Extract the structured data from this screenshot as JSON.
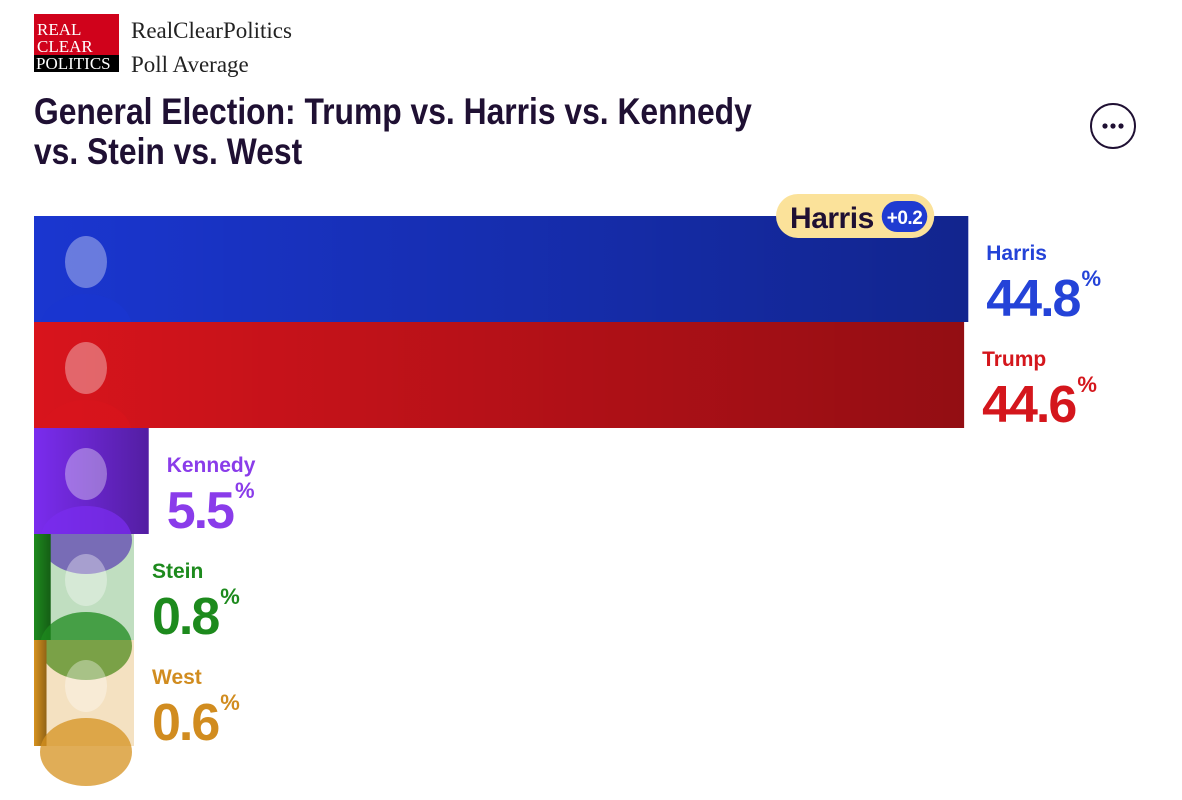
{
  "header": {
    "logo": [
      "REAL",
      "CLEAR",
      "POLITICS"
    ],
    "name": "RealClearPolitics",
    "subtitle": "Poll Average"
  },
  "chart_data": {
    "type": "bar",
    "orientation": "horizontal",
    "title": [
      "General Election: Trump vs. Harris vs. Kennedy",
      "vs. Stein vs. West"
    ],
    "categories": [
      "Harris",
      "Trump",
      "Kennedy",
      "Stein",
      "West"
    ],
    "values": [
      44.8,
      44.6,
      5.5,
      0.8,
      0.6
    ],
    "value_unit": "%",
    "colors": [
      "#1a36d0",
      "#d8141c",
      "#7a2cee",
      "#1e8a1e",
      "#d6921f"
    ],
    "label_colors": [
      "#2443d8",
      "#d4161c",
      "#8a3cea",
      "#1d8a1d",
      "#d18c1f"
    ],
    "xlim": [
      0,
      48
    ],
    "lead_badge": {
      "name": "Harris",
      "margin": "+0.2"
    }
  }
}
